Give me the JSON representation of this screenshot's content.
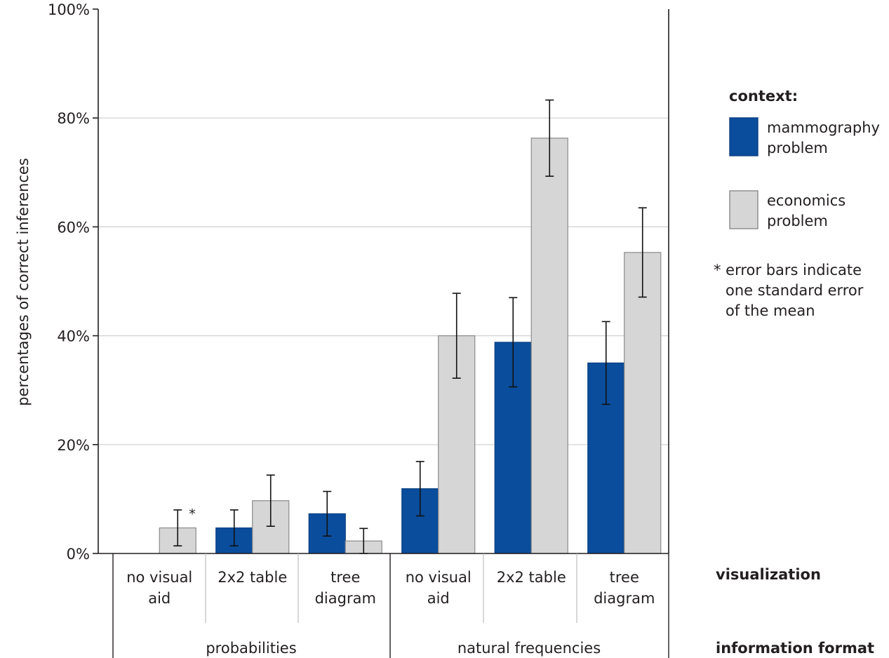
{
  "chart_data": {
    "type": "bar",
    "ylabel": "percentages of correct inferences",
    "ylim": [
      0,
      100
    ],
    "yticks": [
      0,
      20,
      40,
      60,
      80,
      100
    ],
    "ytick_labels": [
      "0%",
      "20%",
      "40%",
      "60%",
      "80%",
      "100%"
    ],
    "grid": true,
    "categories": [
      {
        "label": [
          "no visual",
          "aid"
        ],
        "group": 0
      },
      {
        "label": [
          "2x2 table"
        ],
        "group": 0
      },
      {
        "label": [
          "tree",
          "diagram"
        ],
        "group": 0
      },
      {
        "label": [
          "no visual",
          "aid"
        ],
        "group": 1
      },
      {
        "label": [
          "2x2 table"
        ],
        "group": 1
      },
      {
        "label": [
          "tree",
          "diagram"
        ],
        "group": 1
      }
    ],
    "groups": [
      "probabilities",
      "natural frequencies"
    ],
    "row_labels": {
      "visualization": "visualization",
      "information_format": "information format"
    },
    "series": [
      {
        "name": "mammography problem",
        "name_lines": [
          "mammography",
          "problem"
        ],
        "color": "#0a4d9c",
        "values": [
          0,
          4.7,
          7.3,
          11.9,
          38.8,
          35.0
        ],
        "errors": [
          0,
          3.3,
          4.1,
          5.0,
          8.2,
          7.6
        ]
      },
      {
        "name": "economics problem",
        "name_lines": [
          "economics",
          "problem"
        ],
        "color": "#d6d6d6",
        "values": [
          4.7,
          9.7,
          2.3,
          40.0,
          76.3,
          55.3
        ],
        "errors": [
          3.3,
          4.7,
          2.3,
          7.8,
          7.0,
          8.2
        ]
      }
    ],
    "annotation": "*",
    "legend": {
      "title": "context:",
      "note_lines": [
        "* error bars indicate",
        "one standard error",
        "of the mean"
      ],
      "position": "right"
    }
  }
}
